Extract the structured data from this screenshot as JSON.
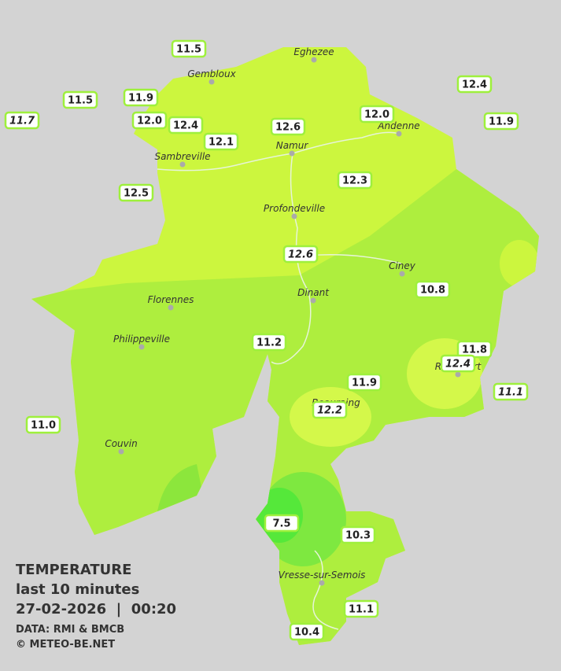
{
  "legend": {
    "title": "TEMPERATURE",
    "subtitle": "last 10 minutes",
    "datetime": "27-02-2026  |  00:20",
    "source": "DATA: RMI & BMCB",
    "copyright": "© METEO-BE.NET"
  },
  "towns": [
    "Eghezee",
    "Gembloux",
    "Andenne",
    "Namur",
    "Sambreville",
    "Profondeville",
    "Ciney",
    "Dinant",
    "Florennes",
    "Philippeville",
    "Rochefort",
    "Beauraing",
    "Couvin",
    "Vresse-sur-Semois"
  ],
  "stations": [
    {
      "value": "11.5",
      "italic": false
    },
    {
      "value": "11.5",
      "italic": false
    },
    {
      "value": "11.7",
      "italic": true
    },
    {
      "value": "11.9",
      "italic": false
    },
    {
      "value": "12.0",
      "italic": false
    },
    {
      "value": "12.4",
      "italic": false
    },
    {
      "value": "12.1",
      "italic": false
    },
    {
      "value": "12.6",
      "italic": false
    },
    {
      "value": "12.0",
      "italic": false
    },
    {
      "value": "12.4",
      "italic": false
    },
    {
      "value": "11.9",
      "italic": false
    },
    {
      "value": "12.5",
      "italic": false
    },
    {
      "value": "12.3",
      "italic": false
    },
    {
      "value": "12.6",
      "italic": true
    },
    {
      "value": "10.8",
      "italic": false
    },
    {
      "value": "11.2",
      "italic": false
    },
    {
      "value": "11.8",
      "italic": false
    },
    {
      "value": "12.4",
      "italic": true
    },
    {
      "value": "11.9",
      "italic": false
    },
    {
      "value": "12.2",
      "italic": true
    },
    {
      "value": "11.1",
      "italic": true
    },
    {
      "value": "11.0",
      "italic": false
    },
    {
      "value": "7.5",
      "italic": false
    },
    {
      "value": "10.3",
      "italic": false
    },
    {
      "value": "11.1",
      "italic": false
    },
    {
      "value": "10.4",
      "italic": false
    }
  ]
}
